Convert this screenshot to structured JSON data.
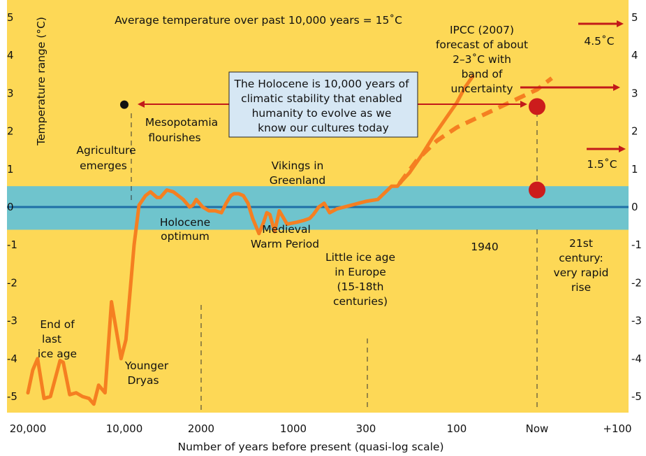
{
  "chart_data": {
    "type": "line",
    "title": "Average temperature over past 10,000 years = 15˚C",
    "ylabel": "Temperature range (°C)",
    "xlabel": "Number of years before present (quasi-log scale)",
    "ylim": [
      -5.3,
      5.3
    ],
    "y_ticks": [
      "5",
      "4",
      "3",
      "2",
      "1",
      "0",
      "-1",
      "-2",
      "-3",
      "-4",
      "-5"
    ],
    "x_ticks": [
      "20,000",
      "10,000",
      "2000",
      "1000",
      "300",
      "100",
      "Now",
      "+100"
    ],
    "band": {
      "name": "Holocene band of stability",
      "low": -0.6,
      "high": 0.55,
      "mean_line": 0
    },
    "series": [
      {
        "name": "Temperature anomaly",
        "x": [
          0,
          0.15,
          0.3,
          0.5,
          0.7,
          1.0,
          1.1,
          1.3,
          1.5,
          1.7,
          1.9,
          2.05,
          2.2,
          2.4,
          2.6,
          2.7,
          2.8,
          2.9,
          3.05,
          3.15,
          3.3,
          3.45,
          3.65,
          3.8,
          4.0,
          4.1,
          4.3,
          4.5,
          4.65,
          4.8,
          5.0,
          5.1,
          5.2,
          5.4,
          5.6,
          5.8,
          6.0,
          6.15,
          6.3,
          6.4,
          6.55,
          6.7,
          6.85,
          7.0,
          7.2,
          7.35,
          7.45,
          7.55,
          7.7,
          7.85,
          8.1,
          8.4,
          8.6,
          8.75,
          8.85,
          9.0,
          9.15,
          9.3,
          9.5,
          9.7,
          9.9,
          10.1,
          10.3,
          10.6,
          10.95,
          11.1,
          11.15,
          11.4,
          11.7,
          12.0,
          12.3,
          12.6,
          12.8,
          13.0,
          13.2,
          13.5,
          13.8,
          14.2,
          14.5,
          14.8,
          15.05
        ],
        "values": [
          -4.9,
          -4.3,
          -4.0,
          -5.05,
          -5.0,
          -4.05,
          -4.1,
          -4.95,
          -4.9,
          -5.0,
          -5.05,
          -5.2,
          -4.7,
          -4.9,
          -2.5,
          -3.0,
          -3.5,
          -4.0,
          -3.5,
          -2.5,
          -1.0,
          0.05,
          0.3,
          0.4,
          0.25,
          0.25,
          0.45,
          0.4,
          0.3,
          0.2,
          0.0,
          0.05,
          0.2,
          0.0,
          -0.1,
          -0.1,
          -0.15,
          0.1,
          0.3,
          0.35,
          0.35,
          0.3,
          0.1,
          -0.3,
          -0.7,
          -0.4,
          -0.15,
          -0.2,
          -0.65,
          -0.1,
          -0.45,
          -0.4,
          -0.35,
          -0.3,
          -0.2,
          0.0,
          0.1,
          -0.15,
          -0.05,
          0.0,
          0.05,
          0.1,
          0.15,
          0.2,
          0.55,
          0.55,
          0.62,
          0.9,
          1.35,
          1.85,
          2.3,
          2.75,
          3.15,
          3.45,
          null,
          null,
          null,
          null,
          null,
          null,
          null
        ],
        "note": "x is in tick-index units (0 = 20,000 years ago, 15 = +100 years); values after Now are the dashed projection"
      },
      {
        "name": "Projection (dashed)",
        "x": [
          11.15,
          11.6,
          12.1,
          12.6,
          13.1,
          13.6,
          14.1,
          14.6,
          15.05
        ],
        "values": [
          0.62,
          1.25,
          1.75,
          2.1,
          2.35,
          2.6,
          2.85,
          3.1,
          3.4
        ]
      }
    ],
    "x_tick_positions": [
      0,
      3,
      5.35,
      8.3,
      10.3,
      12.6,
      14.6,
      17.05
    ],
    "annotations": {
      "holocene_box": "The Holocene is 10,000 years of climatic stability that enabled humanity to evolve as we know our cultures today",
      "mesopotamia": "Mesopotamia flourishes",
      "agriculture": "Agriculture emerges",
      "vikings": "Vikings in Greenland",
      "holocene_optimum": "Holocene optimum",
      "medieval": "Medieval Warm Period",
      "little_ice_age": "Little ice age in Europe (15-18th centuries)",
      "year_1940": "1940",
      "century_21": "21st century: very rapid rise",
      "end_ice_age": "End of last ice age",
      "younger_dryas": "Younger Dryas",
      "ipcc": "IPCC (2007) forecast of about 2–3˚C with band of uncertainty",
      "high_45": "4.5˚C",
      "low_15": "1.5˚C"
    },
    "points": [
      {
        "name": "Mesopotamia marker",
        "x": 3.0,
        "y": 2.7
      },
      {
        "name": "IPCC central forecast",
        "x": 14.6,
        "y": 2.65
      },
      {
        "name": "Current temperature",
        "x": 14.6,
        "y": 0.45
      }
    ]
  },
  "colors": {
    "background": "#fdd856",
    "band": "#6fc4cd",
    "mean_line": "#1f6fa6",
    "series": "#f57f21",
    "marker_red": "#cc1c1c",
    "arrow": "#c21a1a",
    "box_fill": "#d6e7f4"
  }
}
